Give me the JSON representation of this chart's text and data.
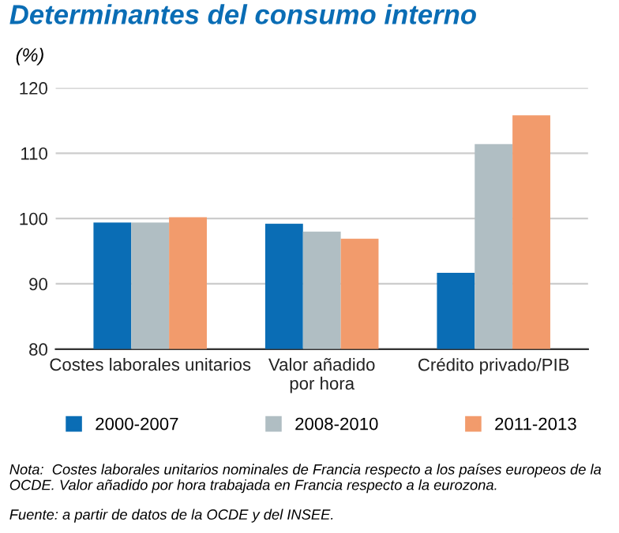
{
  "chart_data": {
    "type": "bar",
    "title": "Determinantes del consumo interno",
    "ylabel": "(%)",
    "categories": [
      "Costes laborales unitarios",
      "Valor añadido\npor hora",
      "Crédito privado/PIB"
    ],
    "series": [
      {
        "name": "2000-2007",
        "color": "#0a6db5",
        "values": [
          99.4,
          99.2,
          91.7
        ]
      },
      {
        "name": "2008-2010",
        "color": "#b0bec3",
        "values": [
          99.4,
          98.0,
          111.4
        ]
      },
      {
        "name": "2011-2013",
        "color": "#f29b6c",
        "values": [
          100.2,
          96.9,
          115.8
        ]
      }
    ],
    "ylim": [
      80,
      120
    ],
    "yticks": [
      80,
      90,
      100,
      110,
      120
    ],
    "grid": "y",
    "legend": "bottom",
    "annotations": [
      "Nota:  Costes laborales unitarios nominales de Francia respecto a los países europeos de la OCDE. Valor añadido por hora trabajada en Francia respecto a la eurozona.",
      "Fuente: a partir de datos de la OCDE y del INSEE."
    ]
  }
}
